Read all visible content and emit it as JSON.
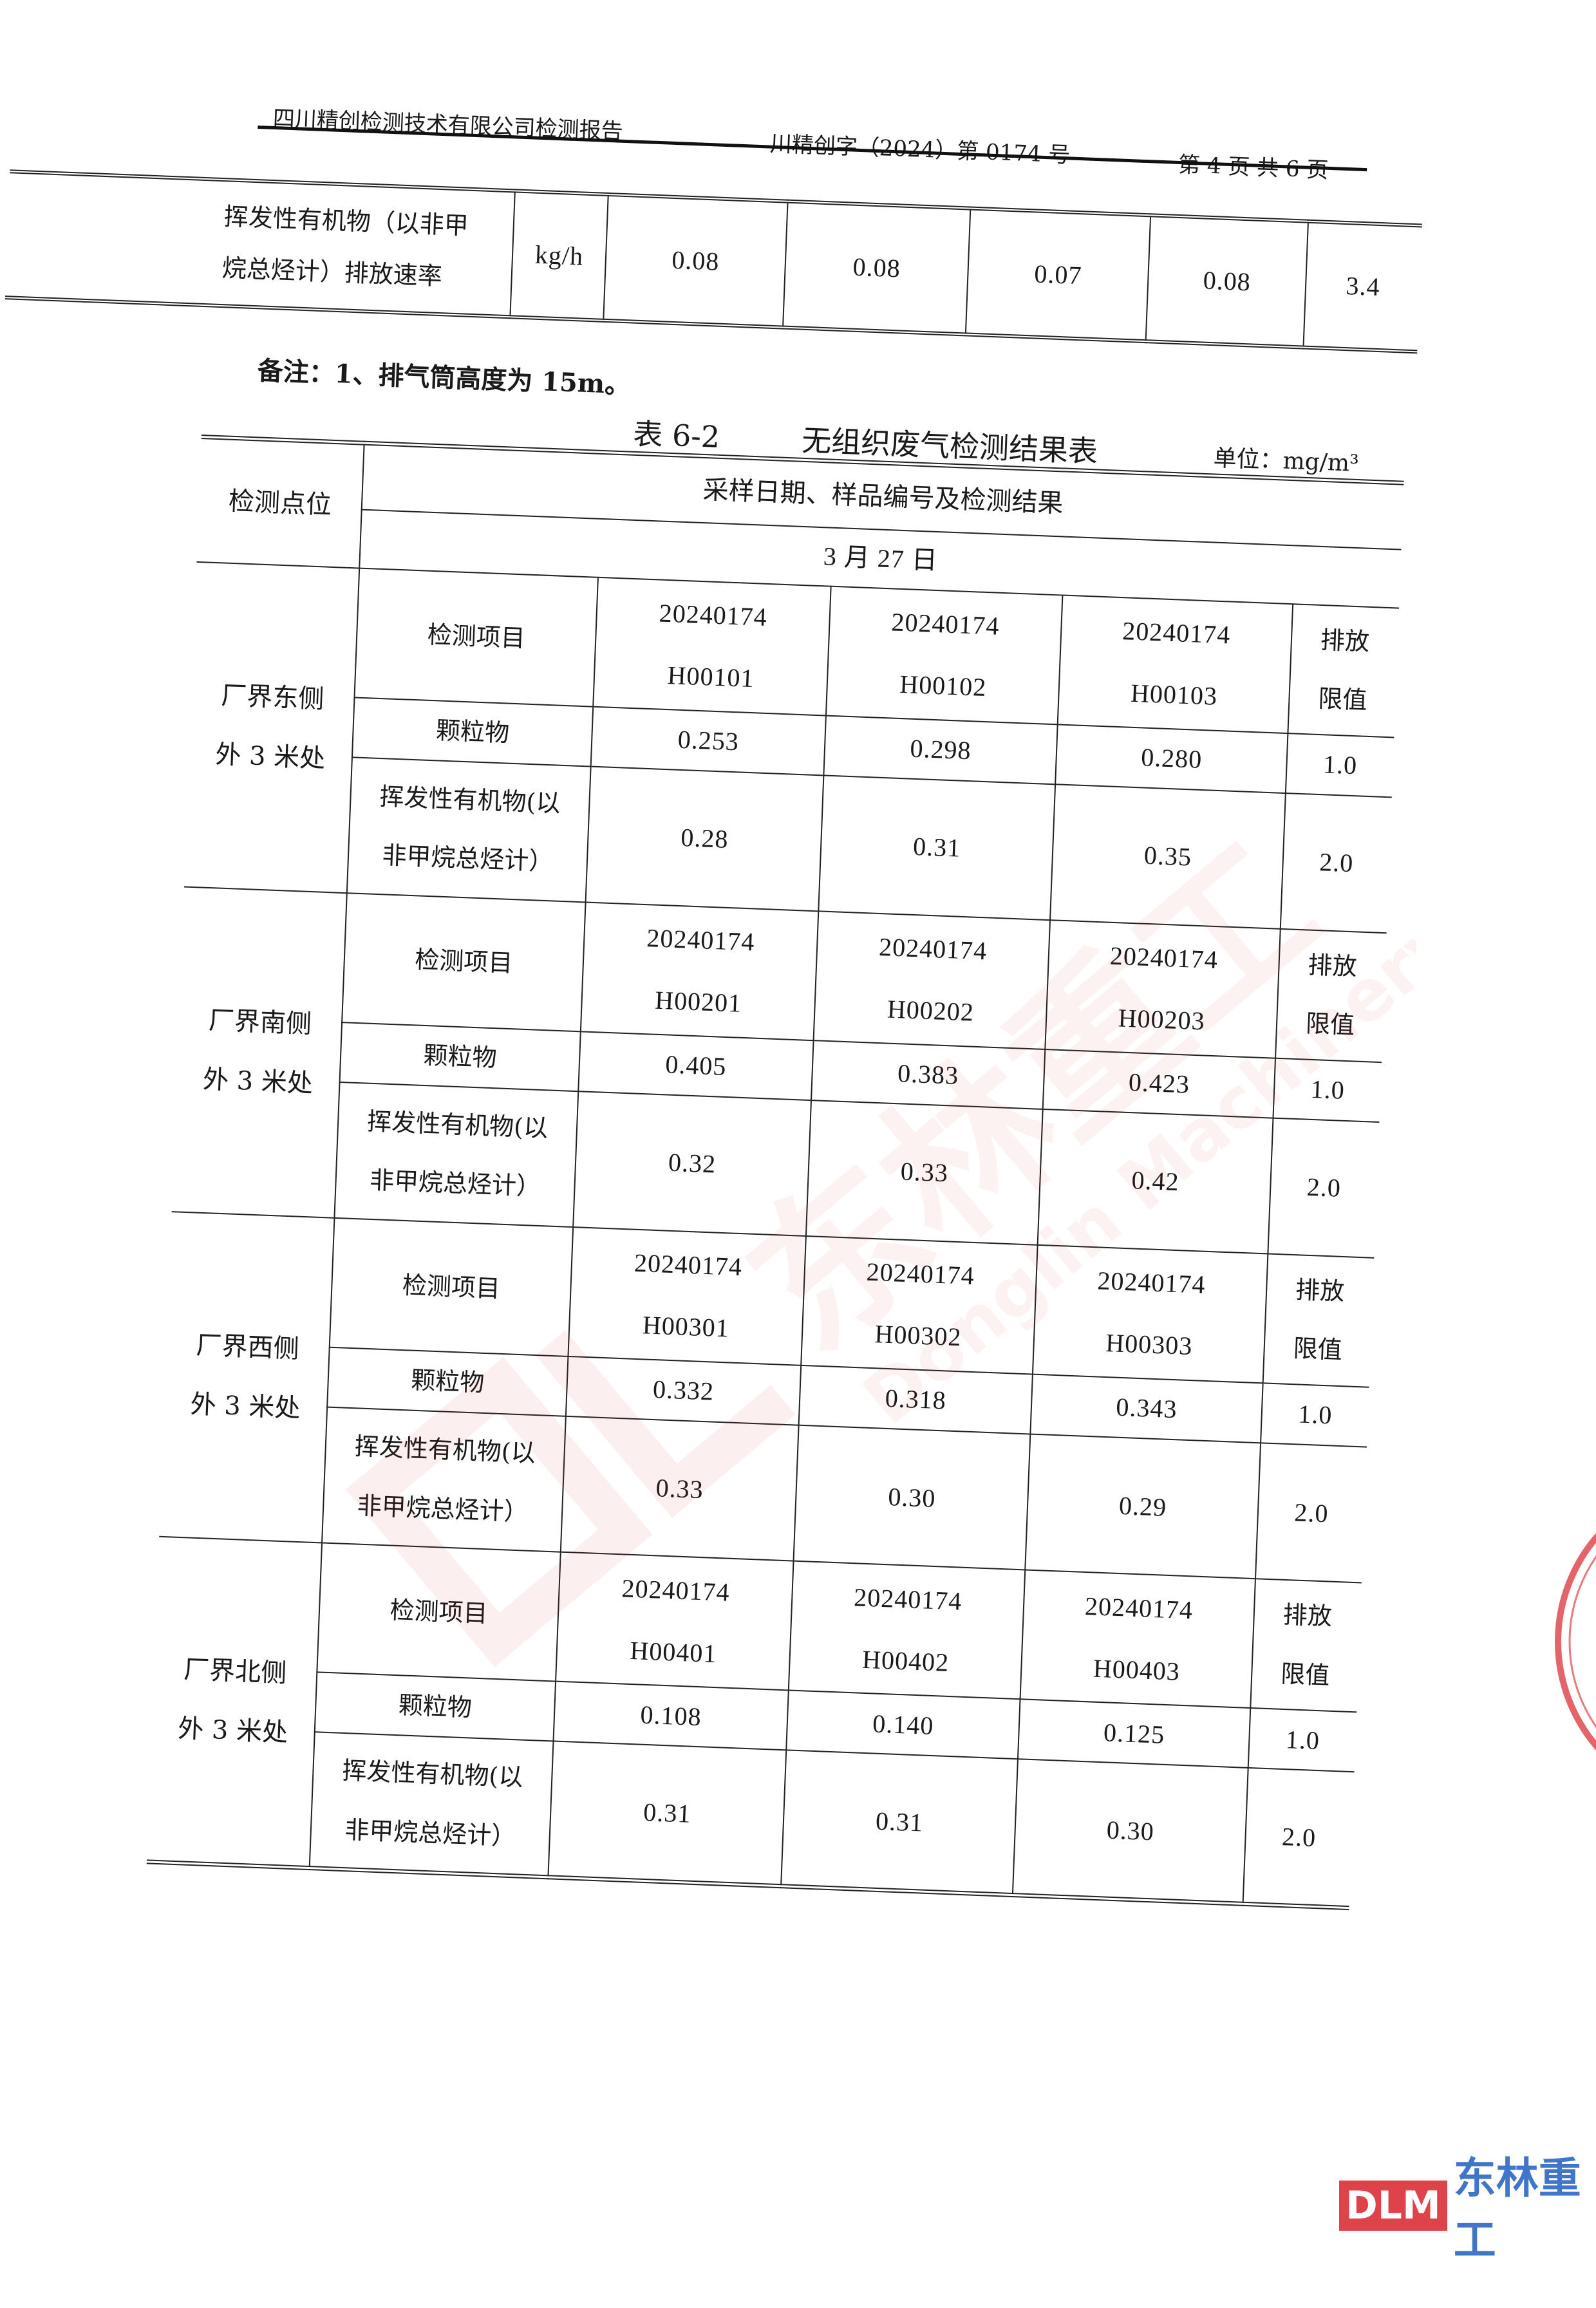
{
  "header": {
    "company": "四川精创检测技术有限公司检测报告",
    "report_no": "川精创字（2024）第 0174 号",
    "page": "第 4 页 共 6 页"
  },
  "top_table": {
    "label_lines": [
      "挥发性有机物（以非甲",
      "烷总烃计）排放速率"
    ],
    "unit": "kg/h",
    "values": [
      "0.08",
      "0.08",
      "0.07",
      "0.08"
    ],
    "limit": "3.4"
  },
  "remark": "备注：1、排气筒高度为 15m。",
  "table": {
    "number": "表 6-2",
    "name": "无组织废气检测结果表",
    "unit": "单位：mg/m³",
    "col_location": "检测点位",
    "col_results": "采样日期、样品编号及检测结果",
    "date": "3 月 27 日",
    "locations": [
      {
        "name": [
          "厂界东侧",
          "外 3 米处"
        ],
        "item_header": "检测项目",
        "samples": [
          {
            "batch": "20240174",
            "id": "H00101"
          },
          {
            "batch": "20240174",
            "id": "H00102"
          },
          {
            "batch": "20240174",
            "id": "H00103"
          }
        ],
        "limit_header": [
          "排放",
          "限值"
        ],
        "rows": [
          {
            "item": [
              "颗粒物"
            ],
            "values": [
              "0.253",
              "0.298",
              "0.280"
            ],
            "limit": "1.0"
          },
          {
            "item": [
              "挥发性有机物(以",
              "非甲烷总烃计）"
            ],
            "values": [
              "0.28",
              "0.31",
              "0.35"
            ],
            "limit": "2.0"
          }
        ]
      },
      {
        "name": [
          "厂界南侧",
          "外 3 米处"
        ],
        "item_header": "检测项目",
        "samples": [
          {
            "batch": "20240174",
            "id": "H00201"
          },
          {
            "batch": "20240174",
            "id": "H00202"
          },
          {
            "batch": "20240174",
            "id": "H00203"
          }
        ],
        "limit_header": [
          "排放",
          "限值"
        ],
        "rows": [
          {
            "item": [
              "颗粒物"
            ],
            "values": [
              "0.405",
              "0.383",
              "0.423"
            ],
            "limit": "1.0"
          },
          {
            "item": [
              "挥发性有机物(以",
              "非甲烷总烃计）"
            ],
            "values": [
              "0.32",
              "0.33",
              "0.42"
            ],
            "limit": "2.0"
          }
        ]
      },
      {
        "name": [
          "厂界西侧",
          "外 3 米处"
        ],
        "item_header": "检测项目",
        "samples": [
          {
            "batch": "20240174",
            "id": "H00301"
          },
          {
            "batch": "20240174",
            "id": "H00302"
          },
          {
            "batch": "20240174",
            "id": "H00303"
          }
        ],
        "limit_header": [
          "排放",
          "限值"
        ],
        "rows": [
          {
            "item": [
              "颗粒物"
            ],
            "values": [
              "0.332",
              "0.318",
              "0.343"
            ],
            "limit": "1.0"
          },
          {
            "item": [
              "挥发性有机物(以",
              "非甲烷总烃计）"
            ],
            "values": [
              "0.33",
              "0.30",
              "0.29"
            ],
            "limit": "2.0"
          }
        ]
      },
      {
        "name": [
          "厂界北侧",
          "外 3 米处"
        ],
        "item_header": "检测项目",
        "samples": [
          {
            "batch": "20240174",
            "id": "H00401"
          },
          {
            "batch": "20240174",
            "id": "H00402"
          },
          {
            "batch": "20240174",
            "id": "H00403"
          }
        ],
        "limit_header": [
          "排放",
          "限值"
        ],
        "rows": [
          {
            "item": [
              "颗粒物"
            ],
            "values": [
              "0.108",
              "0.140",
              "0.125"
            ],
            "limit": "1.0"
          },
          {
            "item": [
              "挥发性有机物(以",
              "非甲烷总烃计）"
            ],
            "values": [
              "0.31",
              "0.31",
              "0.30"
            ],
            "limit": "2.0"
          }
        ]
      }
    ]
  },
  "watermark": {
    "logo": "DLM",
    "name_cn": "东林重工",
    "name_en": "Donglin Machinery"
  },
  "colors": {
    "watermark_red": "#d8232a",
    "ink": "#1a1a1a"
  }
}
